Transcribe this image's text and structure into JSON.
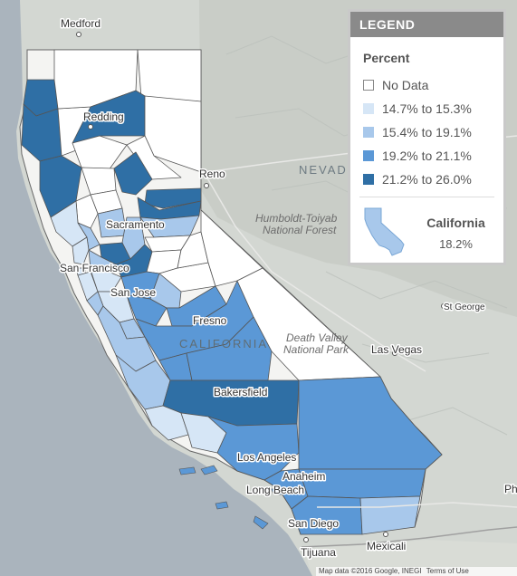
{
  "legend": {
    "title": "LEGEND",
    "subtitle": "Percent",
    "items": [
      {
        "label": "No Data",
        "color": "#ffffff",
        "border": "#888888"
      },
      {
        "label": "14.7% to 15.3%",
        "color": "#d6e6f6",
        "border": "#d6e6f6"
      },
      {
        "label": "15.4% to 19.1%",
        "color": "#a8c8eb",
        "border": "#a8c8eb"
      },
      {
        "label": "19.2% to 21.1%",
        "color": "#5b98d6",
        "border": "#5b98d6"
      },
      {
        "label": "21.2% to 26.0%",
        "color": "#2f6fa5",
        "border": "#2f6fa5"
      }
    ],
    "state": {
      "name": "California",
      "value": "18.2%",
      "color": "#a8c8eb"
    }
  },
  "map_labels": {
    "cities": {
      "medford": "Medford",
      "redding": "Redding",
      "reno": "Reno",
      "sacramento": "Sacramento",
      "san_francisco": "San Francisco",
      "san_jose": "San Jose",
      "fresno": "Fresno",
      "bakersfield": "Bakersfield",
      "las_vegas": "Las Vegas",
      "los_angeles": "Los Angeles",
      "anaheim": "Anaheim",
      "long_beach": "Long Beach",
      "san_diego": "San Diego",
      "tijuana": "Tijuana",
      "mexicali": "Mexicali",
      "st_george": "St George",
      "phoenix_partial": "Ph"
    },
    "regions": {
      "nevada_partial": "NEVAD",
      "california": "CALIFORNIA"
    },
    "parks": {
      "humboldt_line1": "Humboldt-Toiyab",
      "humboldt_line2": "National Forest",
      "death_valley_line1": "Death Valley",
      "death_valley_line2": "National Park"
    }
  },
  "attribution": {
    "map_data": "Map data ©2016 Google, INEGI",
    "terms": "Terms of Use"
  }
}
